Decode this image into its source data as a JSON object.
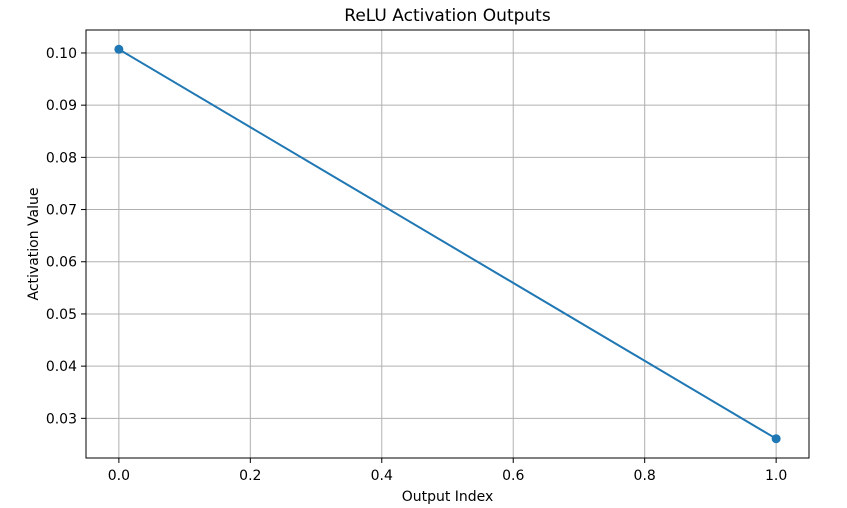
{
  "chart_data": {
    "type": "line",
    "title": "ReLU Activation Outputs",
    "xlabel": "Output Index",
    "ylabel": "Activation Value",
    "x": [
      0.0,
      1.0
    ],
    "series": [
      {
        "values": [
          0.1007,
          0.0261
        ],
        "color": "#1f77b4",
        "marker": "circle"
      }
    ],
    "xlim": [
      -0.05,
      1.05
    ],
    "ylim": [
      0.0224,
      0.1044
    ],
    "xticks": [
      0.0,
      0.2,
      0.4,
      0.6,
      0.8,
      1.0
    ],
    "xtick_labels": [
      "0.0",
      "0.2",
      "0.4",
      "0.6",
      "0.8",
      "1.0"
    ],
    "yticks": [
      0.03,
      0.04,
      0.05,
      0.06,
      0.07,
      0.08,
      0.09,
      0.1
    ],
    "ytick_labels": [
      "0.03",
      "0.04",
      "0.05",
      "0.06",
      "0.07",
      "0.08",
      "0.09",
      "0.10"
    ],
    "grid": true,
    "grid_color": "#b0b0b0"
  }
}
